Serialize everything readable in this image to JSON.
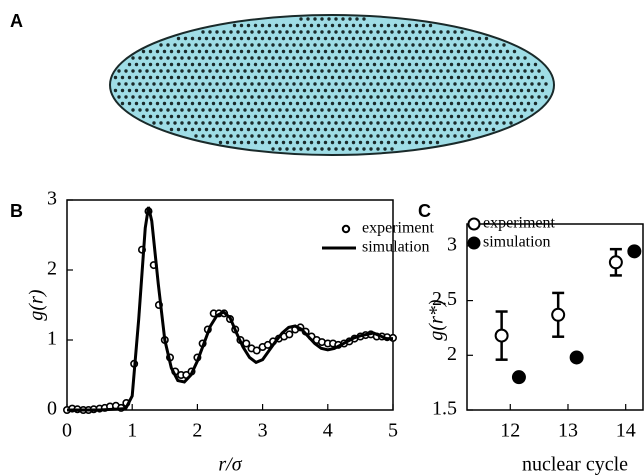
{
  "panel_labels": [
    "A",
    "B",
    "C"
  ],
  "chart_data": [
    {
      "type": "line",
      "xlabel": "r/σ",
      "ylabel": "g(r)",
      "xlim": [
        0,
        5
      ],
      "ylim": [
        0,
        3
      ],
      "xticks": [
        0,
        1,
        2,
        3,
        4,
        5
      ],
      "yticks": [
        0,
        1,
        2,
        3
      ],
      "legend": "upper right",
      "series": [
        {
          "name": "experiment",
          "color": "#000000",
          "marker": "open",
          "x": [
            0.0,
            0.08,
            0.16,
            0.25,
            0.33,
            0.41,
            0.5,
            0.58,
            0.66,
            0.75,
            0.83,
            0.91,
            1.03,
            1.15,
            1.25,
            1.33,
            1.41,
            1.5,
            1.58,
            1.66,
            1.75,
            1.83,
            1.91,
            2.0,
            2.08,
            2.16,
            2.25,
            2.33,
            2.41,
            2.5,
            2.58,
            2.66,
            2.75,
            2.83,
            2.91,
            3.0,
            3.08,
            3.16,
            3.25,
            3.33,
            3.41,
            3.5,
            3.58,
            3.66,
            3.75,
            3.83,
            3.91,
            4.0,
            4.08,
            4.16,
            4.25,
            4.33,
            4.41,
            4.5,
            4.58,
            4.66,
            4.75,
            4.83,
            4.91,
            5.0
          ],
          "values": [
            0.0,
            0.02,
            0.01,
            0.0,
            0.0,
            0.01,
            0.02,
            0.03,
            0.05,
            0.06,
            0.03,
            0.1,
            0.66,
            2.29,
            2.84,
            2.07,
            1.5,
            1.0,
            0.75,
            0.55,
            0.5,
            0.5,
            0.55,
            0.75,
            0.95,
            1.15,
            1.38,
            1.38,
            1.38,
            1.3,
            1.15,
            1.0,
            0.95,
            0.88,
            0.85,
            0.9,
            0.93,
            0.98,
            1.02,
            1.05,
            1.08,
            1.15,
            1.18,
            1.12,
            1.05,
            1.0,
            0.97,
            0.95,
            0.95,
            0.93,
            0.95,
            0.98,
            1.02,
            1.05,
            1.07,
            1.08,
            1.05,
            1.05,
            1.04,
            1.03
          ]
        },
        {
          "name": "simulation",
          "color": "#000000",
          "marker": "none",
          "x": [
            0,
            0.5,
            0.9,
            1.0,
            1.1,
            1.2,
            1.25,
            1.3,
            1.4,
            1.5,
            1.6,
            1.7,
            1.8,
            1.9,
            2.0,
            2.1,
            2.2,
            2.3,
            2.4,
            2.5,
            2.6,
            2.7,
            2.8,
            2.9,
            3.0,
            3.1,
            3.2,
            3.3,
            3.4,
            3.5,
            3.6,
            3.7,
            3.8,
            3.9,
            4.0,
            4.1,
            4.2,
            4.3,
            4.4,
            4.5,
            4.6,
            4.7,
            4.8,
            4.9,
            5.0
          ],
          "values": [
            0,
            0,
            0.02,
            0.2,
            1.3,
            2.6,
            2.9,
            2.7,
            1.8,
            1.0,
            0.6,
            0.42,
            0.4,
            0.5,
            0.7,
            0.95,
            1.2,
            1.35,
            1.4,
            1.32,
            1.1,
            0.9,
            0.75,
            0.68,
            0.72,
            0.85,
            0.98,
            1.1,
            1.18,
            1.2,
            1.15,
            1.05,
            0.95,
            0.88,
            0.86,
            0.88,
            0.93,
            0.98,
            1.03,
            1.06,
            1.08,
            1.1,
            1.06,
            1.02,
            1.02
          ]
        }
      ]
    },
    {
      "type": "scatter",
      "xlabel": "nuclear cycle",
      "ylabel": "g(r*)",
      "xlim": [
        11.25,
        14.3
      ],
      "ylim": [
        1.5,
        3.2
      ],
      "xticks": [
        12,
        13,
        14
      ],
      "yticks": [
        1.5,
        2,
        2.5,
        3
      ],
      "legend": "upper left",
      "series": [
        {
          "name": "experiment",
          "color": "#000000",
          "marker": "open",
          "x": [
            11.85,
            12.83,
            13.83
          ],
          "values": [
            2.18,
            2.37,
            2.85
          ],
          "errors": [
            0.22,
            0.2,
            0.12
          ]
        },
        {
          "name": "simulation",
          "color": "#000000",
          "marker": "filled",
          "x": [
            12.15,
            13.15,
            14.15
          ],
          "values": [
            1.8,
            1.98,
            2.95
          ]
        }
      ]
    }
  ]
}
